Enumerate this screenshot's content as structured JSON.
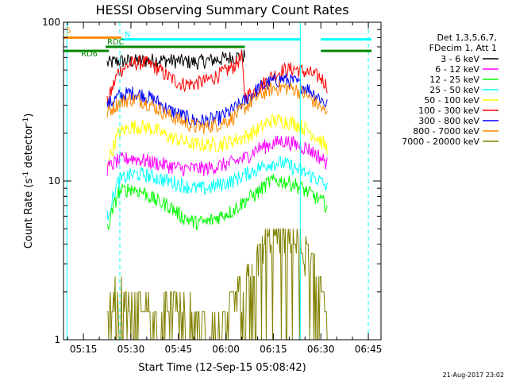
{
  "chart_data": {
    "type": "line",
    "title": "HESSI Observing Summary Count Rates",
    "xlabel": "Start Time (12-Sep-15 05:08:42)",
    "ylabel_main": "Count Rate (s",
    "ylabel_sup1": "-1",
    "ylabel_mid": " detector",
    "ylabel_sup2": "-1",
    "ylabel_end": ")",
    "yscale": "log",
    "ylim": [
      1,
      100
    ],
    "xlim_minutes": [
      "05:08:42",
      "06:49:00"
    ],
    "x_ticks": [
      "05:15",
      "05:30",
      "05:45",
      "06:00",
      "06:15",
      "06:30",
      "06:45"
    ],
    "x_tick_minutes": [
      315,
      330,
      345,
      360,
      375,
      390,
      405
    ],
    "y_ticks": [
      "1",
      "10",
      "100"
    ],
    "y_tick_values": [
      1,
      10,
      100
    ],
    "legend": {
      "header_1": "Det 1,3,5,6,7,",
      "header_2": "FDecim 1, Att 1",
      "entries": [
        {
          "label": "3 - 6 keV",
          "color": "#000000"
        },
        {
          "label": "6 - 12 keV",
          "color": "#ff00ff"
        },
        {
          "label": "12 - 25 keV",
          "color": "#00ff00"
        },
        {
          "label": "25 - 50 keV",
          "color": "#00ffff"
        },
        {
          "label": "50 - 100 keV",
          "color": "#ffff00"
        },
        {
          "label": "100 - 300 keV",
          "color": "#ff0000"
        },
        {
          "label": "300 - 800 keV",
          "color": "#0000ff"
        },
        {
          "label": "800 - 7000 keV",
          "color": "#ff8800"
        },
        {
          "label": "7000 - 20000 keV",
          "color": "#808000"
        }
      ]
    },
    "series": [
      {
        "name": "3 - 6 keV",
        "color": "#000000",
        "points": [
          [
            322.5,
            55
          ],
          [
            326,
            57
          ],
          [
            332,
            57
          ],
          [
            338,
            58
          ],
          [
            345,
            57
          ],
          [
            350,
            56
          ],
          [
            356,
            58
          ],
          [
            362,
            60
          ],
          [
            366,
            62
          ]
        ]
      },
      {
        "name": "100 - 300 keV",
        "color": "#ff0000",
        "points": [
          [
            322.5,
            31
          ],
          [
            326,
            49
          ],
          [
            330,
            55
          ],
          [
            334,
            56
          ],
          [
            338,
            52
          ],
          [
            342,
            45
          ],
          [
            346,
            41
          ],
          [
            350,
            41
          ],
          [
            354,
            43
          ],
          [
            358,
            47
          ],
          [
            362,
            52
          ],
          [
            365,
            60
          ],
          [
            366,
            34
          ],
          [
            370,
            38
          ],
          [
            374,
            45
          ],
          [
            378,
            50
          ],
          [
            382,
            51
          ],
          [
            386,
            48
          ],
          [
            390,
            45
          ],
          [
            392,
            40
          ]
        ]
      },
      {
        "name": "300 - 800 keV",
        "color": "#0000ff",
        "points": [
          [
            322.5,
            30
          ],
          [
            326,
            34
          ],
          [
            330,
            36
          ],
          [
            334,
            35
          ],
          [
            338,
            32
          ],
          [
            342,
            28
          ],
          [
            346,
            26
          ],
          [
            350,
            24
          ],
          [
            354,
            24
          ],
          [
            358,
            25
          ],
          [
            362,
            28
          ],
          [
            366,
            32
          ],
          [
            370,
            38
          ],
          [
            374,
            42
          ],
          [
            378,
            44
          ],
          [
            382,
            42
          ],
          [
            386,
            38
          ],
          [
            390,
            33
          ],
          [
            392,
            30
          ]
        ]
      },
      {
        "name": "800 - 7000 keV",
        "color": "#ff8800",
        "points": [
          [
            322.5,
            27
          ],
          [
            326,
            31
          ],
          [
            330,
            33
          ],
          [
            334,
            32
          ],
          [
            338,
            29
          ],
          [
            342,
            26
          ],
          [
            346,
            24
          ],
          [
            350,
            22
          ],
          [
            354,
            22
          ],
          [
            358,
            23
          ],
          [
            362,
            25
          ],
          [
            366,
            29
          ],
          [
            370,
            34
          ],
          [
            374,
            38
          ],
          [
            378,
            39
          ],
          [
            382,
            38
          ],
          [
            386,
            34
          ],
          [
            390,
            29
          ],
          [
            392,
            26
          ]
        ]
      },
      {
        "name": "50 - 100 keV",
        "color": "#ffff00",
        "points": [
          [
            322.5,
            13
          ],
          [
            326,
            20
          ],
          [
            330,
            22
          ],
          [
            334,
            22
          ],
          [
            338,
            21
          ],
          [
            342,
            19
          ],
          [
            346,
            18
          ],
          [
            350,
            17
          ],
          [
            354,
            17
          ],
          [
            358,
            17
          ],
          [
            362,
            18
          ],
          [
            366,
            19
          ],
          [
            370,
            21
          ],
          [
            374,
            24
          ],
          [
            378,
            24
          ],
          [
            382,
            23
          ],
          [
            386,
            21
          ],
          [
            390,
            18
          ],
          [
            392,
            16
          ]
        ]
      },
      {
        "name": "6 - 12 keV",
        "color": "#ff00ff",
        "points": [
          [
            322.5,
            12
          ],
          [
            326,
            13.5
          ],
          [
            330,
            14
          ],
          [
            334,
            13.5
          ],
          [
            338,
            13
          ],
          [
            342,
            12.5
          ],
          [
            346,
            12
          ],
          [
            350,
            12
          ],
          [
            354,
            12
          ],
          [
            358,
            12.5
          ],
          [
            362,
            13
          ],
          [
            366,
            14
          ],
          [
            370,
            16
          ],
          [
            374,
            17
          ],
          [
            378,
            18
          ],
          [
            382,
            17
          ],
          [
            386,
            16
          ],
          [
            390,
            14
          ],
          [
            392,
            13
          ]
        ]
      },
      {
        "name": "25 - 50 keV",
        "color": "#00ffff",
        "points": [
          [
            322.5,
            6
          ],
          [
            326,
            10
          ],
          [
            330,
            11
          ],
          [
            334,
            11
          ],
          [
            338,
            10.5
          ],
          [
            342,
            10
          ],
          [
            346,
            9.5
          ],
          [
            350,
            9
          ],
          [
            354,
            9
          ],
          [
            358,
            9.5
          ],
          [
            362,
            10
          ],
          [
            366,
            11
          ],
          [
            370,
            12
          ],
          [
            374,
            13
          ],
          [
            378,
            13
          ],
          [
            382,
            12
          ],
          [
            386,
            11
          ],
          [
            390,
            10
          ],
          [
            392,
            9
          ]
        ]
      },
      {
        "name": "12 - 25 keV",
        "color": "#00ff00",
        "points": [
          [
            322.5,
            5
          ],
          [
            326,
            8.5
          ],
          [
            330,
            9
          ],
          [
            334,
            8.5
          ],
          [
            338,
            7.5
          ],
          [
            342,
            7
          ],
          [
            346,
            6
          ],
          [
            350,
            5.5
          ],
          [
            354,
            5.5
          ],
          [
            358,
            6
          ],
          [
            362,
            6.5
          ],
          [
            366,
            7.5
          ],
          [
            370,
            8.5
          ],
          [
            374,
            10
          ],
          [
            378,
            10
          ],
          [
            382,
            9.5
          ],
          [
            386,
            8.5
          ],
          [
            390,
            7.5
          ],
          [
            392,
            7
          ]
        ]
      },
      {
        "name": "7000 - 20000 keV",
        "color": "#808000",
        "points": [
          [
            322.5,
            1.5
          ],
          [
            326,
            1.9
          ],
          [
            330,
            1.5
          ],
          [
            334,
            1.6
          ],
          [
            338,
            1.4
          ],
          [
            342,
            1.6
          ],
          [
            346,
            1.5
          ],
          [
            350,
            1.3
          ],
          [
            354,
            1.2
          ],
          [
            358,
            1.1
          ],
          [
            362,
            1.5
          ],
          [
            366,
            2.2
          ],
          [
            370,
            3.2
          ],
          [
            374,
            4.4
          ],
          [
            378,
            4.8
          ],
          [
            382,
            4.0
          ],
          [
            386,
            3.2
          ],
          [
            390,
            2.4
          ],
          [
            392,
            1.6
          ]
        ]
      }
    ],
    "flags": {
      "S": {
        "label": "S",
        "color": "#ff8800",
        "x_range": [
          308.7,
          327
        ],
        "level": 80
      },
      "N": {
        "label": "N",
        "color": "#00ffff",
        "x_range": [
          327,
          383.5
        ],
        "level": 78
      },
      "N2": {
        "color": "#00ffff",
        "x_range": [
          390,
          406
        ],
        "level": 78
      },
      "RDC": {
        "label": "RDC",
        "color": "#008800",
        "x_range": [
          322,
          366
        ],
        "level": 70
      },
      "RD6": {
        "label": "RD6",
        "color": "#008800",
        "x_range": [
          308.7,
          323
        ],
        "level": 66
      },
      "RD6b": {
        "color": "#008800",
        "x_range": [
          390,
          406
        ],
        "level": 66
      }
    },
    "vlines": [
      {
        "x": 309.8,
        "color": "#00ffff",
        "style": "solid"
      },
      {
        "x": 326.5,
        "color": "#00ffff",
        "style": "dashed"
      },
      {
        "x": 383.5,
        "color": "#00ffff",
        "style": "solid"
      },
      {
        "x": 405,
        "color": "#00ffff",
        "style": "dashed"
      }
    ],
    "grid": false,
    "legend_position": "right"
  },
  "footer_date": "21-Aug-2017 23:02"
}
